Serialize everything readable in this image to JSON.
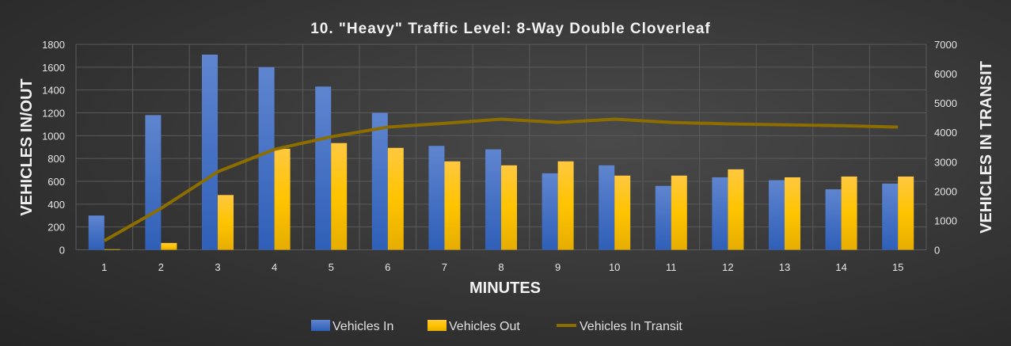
{
  "chart_data": {
    "type": "bar",
    "title": "10. \"Heavy\" Traffic Level: 8-Way Double Cloverleaf",
    "xlabel": "MINUTES",
    "ylabel": "VEHICLES IN/OUT",
    "y2label": "VEHICLES IN TRANSIT",
    "categories": [
      "1",
      "2",
      "3",
      "4",
      "5",
      "6",
      "7",
      "8",
      "9",
      "10",
      "11",
      "12",
      "13",
      "14",
      "15"
    ],
    "ylim": [
      0,
      1800
    ],
    "yticks": [
      "0",
      "200",
      "400",
      "600",
      "800",
      "1000",
      "1200",
      "1400",
      "1600",
      "1800"
    ],
    "y2lim": [
      0,
      7000
    ],
    "y2ticks": [
      "0",
      "1000",
      "2000",
      "3000",
      "4000",
      "5000",
      "6000",
      "7000"
    ],
    "grid": true,
    "legend_position": "bottom",
    "series": [
      {
        "name": "Vehicles In",
        "type": "bar",
        "axis": "left",
        "color": "#4472c4",
        "values": [
          300,
          1180,
          1710,
          1600,
          1430,
          1200,
          910,
          880,
          670,
          740,
          560,
          635,
          610,
          530,
          580
        ]
      },
      {
        "name": "Vehicles Out",
        "type": "bar",
        "axis": "left",
        "color": "#ffc000",
        "values": [
          5,
          60,
          480,
          885,
          935,
          893,
          775,
          740,
          775,
          650,
          650,
          705,
          635,
          642,
          642
        ]
      },
      {
        "name": "Vehicles In Transit",
        "type": "line",
        "axis": "right",
        "color": "#8c6d00",
        "values": [
          310,
          1410,
          2660,
          3420,
          3850,
          4180,
          4310,
          4450,
          4340,
          4450,
          4340,
          4290,
          4260,
          4230,
          4180
        ]
      }
    ]
  }
}
